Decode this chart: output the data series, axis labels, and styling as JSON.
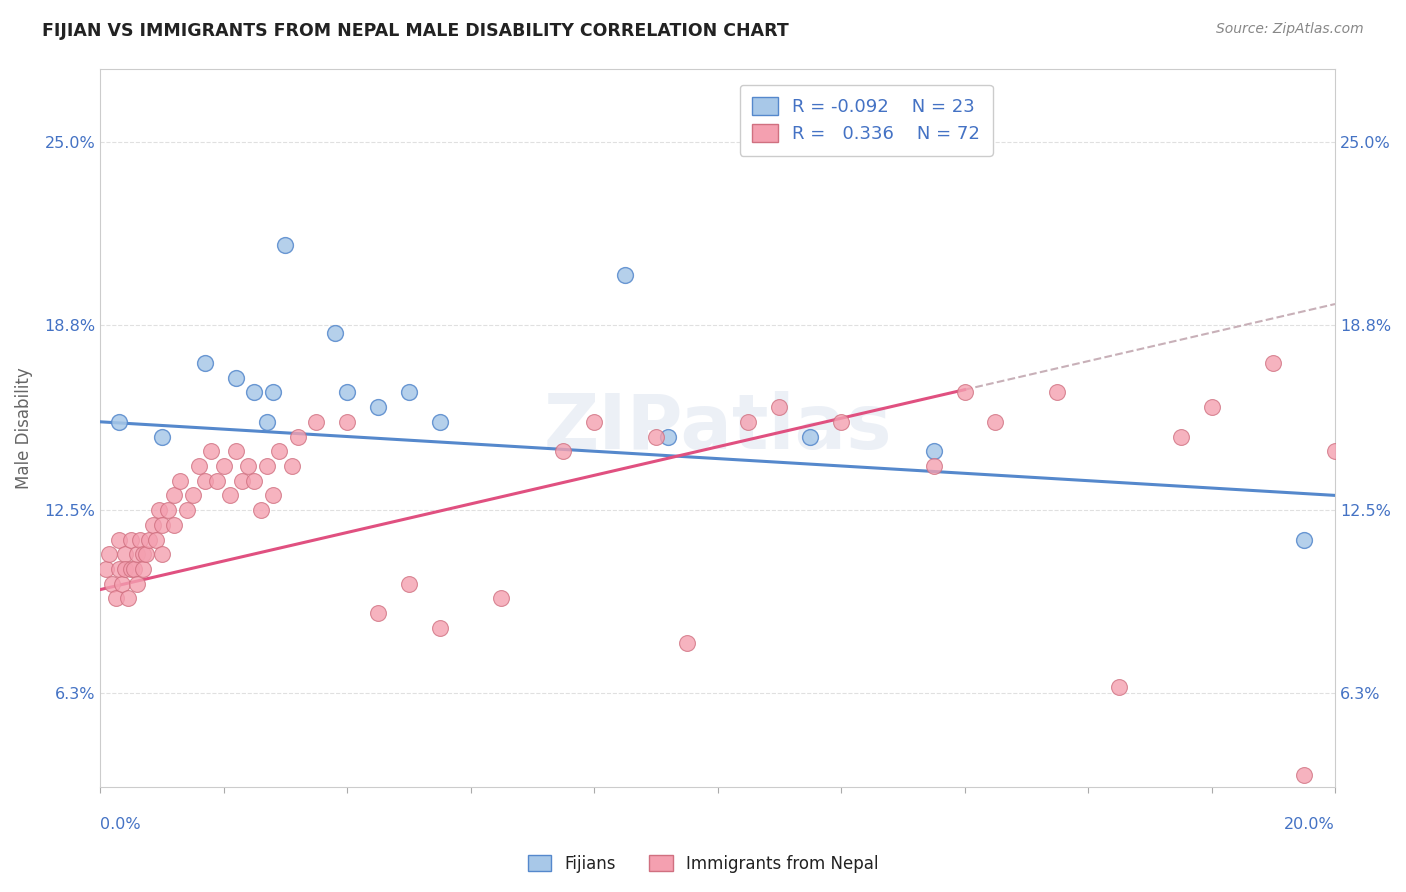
{
  "title": "FIJIAN VS IMMIGRANTS FROM NEPAL MALE DISABILITY CORRELATION CHART",
  "source": "Source: ZipAtlas.com",
  "ylabel": "Male Disability",
  "xmin": 0.0,
  "xmax": 20.0,
  "ymin": 3.1,
  "ymax": 27.5,
  "yticks": [
    6.3,
    12.5,
    18.8,
    25.0
  ],
  "ytick_labels": [
    "6.3%",
    "12.5%",
    "18.8%",
    "25.0%"
  ],
  "color_fijian": "#a8c8e8",
  "color_nepal": "#f4a0b0",
  "color_trend_fijian": "#5588cc",
  "color_trend_nepal": "#e05080",
  "color_trend_dashed": "#c8b0b8",
  "fijian_trend_x0": 0.0,
  "fijian_trend_y0": 15.5,
  "fijian_trend_x1": 20.0,
  "fijian_trend_y1": 13.0,
  "nepal_trend_x0": 0.0,
  "nepal_trend_y0": 9.8,
  "nepal_trend_x1": 20.0,
  "nepal_trend_y1": 19.5,
  "nepal_solid_end_x": 14.0,
  "fijian_x": [
    0.3,
    1.0,
    1.7,
    2.2,
    2.5,
    2.7,
    2.8,
    3.0,
    3.8,
    4.0,
    4.5,
    5.0,
    5.5,
    8.5,
    9.2,
    11.5,
    13.5,
    19.5
  ],
  "fijian_y": [
    15.5,
    15.0,
    17.5,
    17.0,
    16.5,
    15.5,
    16.5,
    21.5,
    18.5,
    16.5,
    16.0,
    16.5,
    15.5,
    20.5,
    15.0,
    15.0,
    14.5,
    11.5
  ],
  "nepal_x": [
    0.1,
    0.15,
    0.2,
    0.25,
    0.3,
    0.3,
    0.35,
    0.4,
    0.4,
    0.45,
    0.5,
    0.5,
    0.55,
    0.6,
    0.6,
    0.65,
    0.7,
    0.7,
    0.75,
    0.8,
    0.85,
    0.9,
    0.95,
    1.0,
    1.0,
    1.1,
    1.2,
    1.2,
    1.3,
    1.4,
    1.5,
    1.6,
    1.7,
    1.8,
    1.9,
    2.0,
    2.1,
    2.2,
    2.3,
    2.4,
    2.5,
    2.6,
    2.7,
    2.8,
    2.9,
    3.1,
    3.2,
    3.5,
    4.0,
    4.5,
    5.0,
    5.5,
    6.5,
    7.5,
    8.0,
    9.0,
    9.5,
    10.5,
    11.0,
    12.0,
    13.5,
    14.0,
    14.5,
    15.5,
    16.5,
    17.5,
    18.0,
    19.0,
    19.5,
    20.0
  ],
  "nepal_y": [
    10.5,
    11.0,
    10.0,
    9.5,
    10.5,
    11.5,
    10.0,
    11.0,
    10.5,
    9.5,
    10.5,
    11.5,
    10.5,
    11.0,
    10.0,
    11.5,
    11.0,
    10.5,
    11.0,
    11.5,
    12.0,
    11.5,
    12.5,
    11.0,
    12.0,
    12.5,
    12.0,
    13.0,
    13.5,
    12.5,
    13.0,
    14.0,
    13.5,
    14.5,
    13.5,
    14.0,
    13.0,
    14.5,
    13.5,
    14.0,
    13.5,
    12.5,
    14.0,
    13.0,
    14.5,
    14.0,
    15.0,
    15.5,
    15.5,
    9.0,
    10.0,
    8.5,
    9.5,
    14.5,
    15.5,
    15.0,
    8.0,
    15.5,
    16.0,
    15.5,
    14.0,
    16.5,
    15.5,
    16.5,
    6.5,
    15.0,
    16.0,
    17.5,
    3.5,
    14.5
  ],
  "watermark": "ZIPatlas",
  "background_color": "#ffffff",
  "grid_color": "#e0e0e0"
}
